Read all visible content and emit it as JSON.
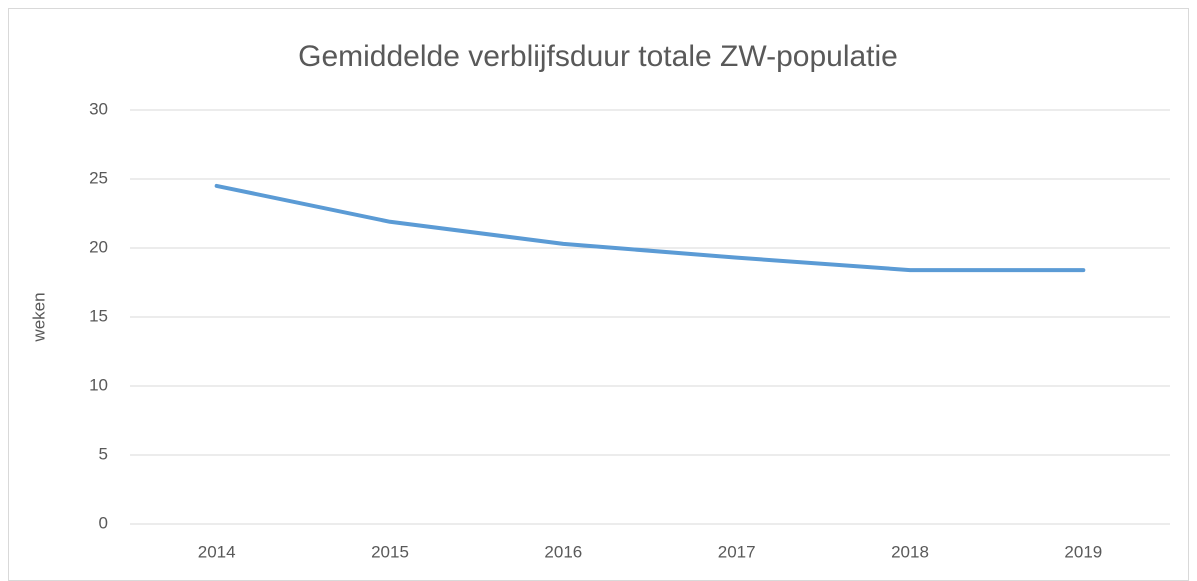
{
  "chart_data": {
    "type": "line",
    "title": "Gemiddelde verblijfsduur totale ZW-populatie",
    "y_label": "weken",
    "categories": [
      "2014",
      "2015",
      "2016",
      "2017",
      "2018",
      "2019"
    ],
    "values": [
      24.5,
      21.9,
      20.3,
      19.3,
      18.4,
      18.4
    ],
    "color": "#5b9bd5",
    "ylim": [
      0,
      30
    ],
    "yticks": [
      0,
      5,
      10,
      15,
      20,
      25,
      30
    ],
    "grid": true
  }
}
